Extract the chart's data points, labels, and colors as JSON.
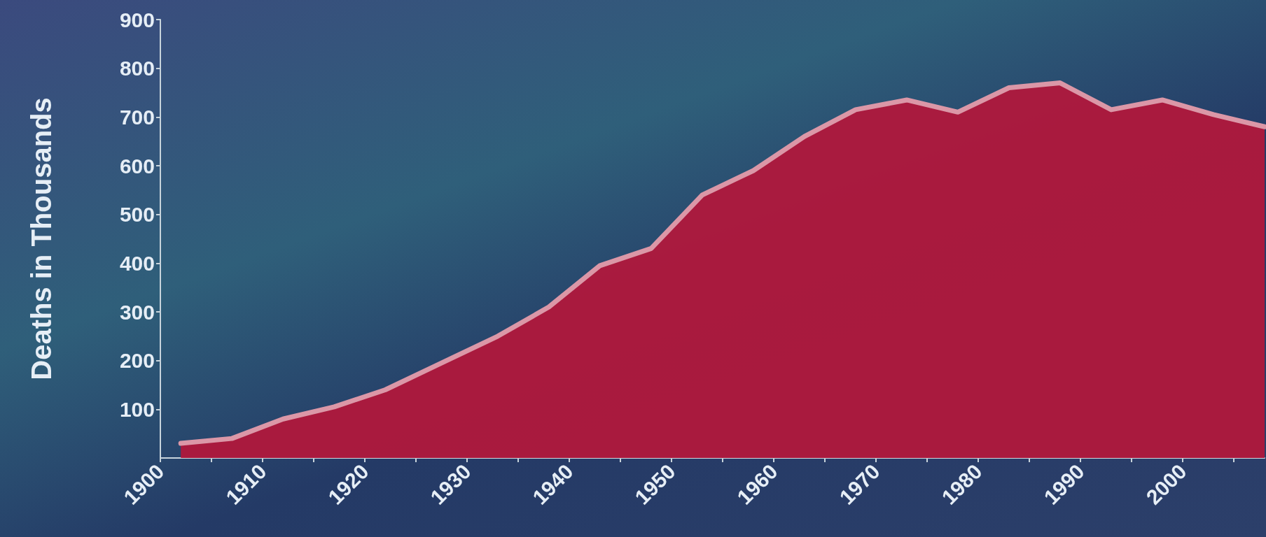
{
  "chart_data": {
    "type": "area",
    "ylabel": "Deaths in Thousands",
    "x": [
      1902,
      1907,
      1912,
      1917,
      1922,
      1927,
      1933,
      1938,
      1943,
      1948,
      1953,
      1958,
      1963,
      1968,
      1973,
      1978,
      1983,
      1988,
      1993,
      1998,
      2003,
      2008
    ],
    "values": [
      30,
      40,
      80,
      105,
      140,
      190,
      250,
      310,
      395,
      430,
      540,
      590,
      660,
      715,
      735,
      710,
      760,
      770,
      715,
      735,
      705,
      680
    ],
    "color": "#b0183c",
    "xlim": [
      1900,
      2008
    ],
    "ylim": [
      0,
      900
    ],
    "xticks": [
      1900,
      {
        "value": 1905,
        "label": null
      },
      1910,
      {
        "value": 1915,
        "label": null
      },
      1920,
      {
        "value": 1925,
        "label": null
      },
      1930,
      {
        "value": 1935,
        "label": null
      },
      1940,
      {
        "value": 1945,
        "label": null
      },
      1950,
      {
        "value": 1955,
        "label": null
      },
      1960,
      {
        "value": 1965,
        "label": null
      },
      1970,
      {
        "value": 1975,
        "label": null
      },
      1980,
      {
        "value": 1985,
        "label": null
      },
      1990,
      {
        "value": 1995,
        "label": null
      },
      2000,
      {
        "value": 2005,
        "label": null
      }
    ],
    "yticks": [
      100,
      200,
      300,
      400,
      500,
      600,
      700,
      800,
      900
    ],
    "grid": false
  }
}
